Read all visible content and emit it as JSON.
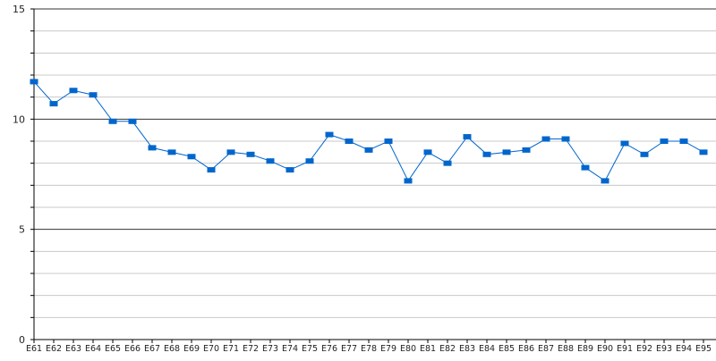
{
  "chart_data": {
    "type": "line",
    "title": "",
    "xlabel": "",
    "ylabel": "",
    "ylim": [
      0,
      15
    ],
    "y_ticks": [
      0,
      5,
      10,
      15
    ],
    "y_minor_step": 1,
    "grid": true,
    "legend": "none",
    "colors": {
      "series": "#0066cc",
      "major_grid": "#333333",
      "minor_grid": "#c8c8c8"
    },
    "categories": [
      "E61",
      "E62",
      "E63",
      "E64",
      "E65",
      "E66",
      "E67",
      "E68",
      "E69",
      "E70",
      "E71",
      "E72",
      "E73",
      "E74",
      "E75",
      "E76",
      "E77",
      "E78",
      "E79",
      "E80",
      "E81",
      "E82",
      "E83",
      "E84",
      "E85",
      "E86",
      "E87",
      "E88",
      "E89",
      "E90",
      "E91",
      "E92",
      "E93",
      "E94",
      "E95"
    ],
    "series": [
      {
        "values": [
          11.7,
          10.7,
          11.3,
          11.1,
          9.9,
          9.9,
          8.7,
          8.5,
          8.3,
          7.7,
          8.5,
          8.4,
          8.1,
          7.7,
          8.1,
          9.3,
          9.0,
          8.6,
          9.0,
          7.2,
          8.5,
          8.0,
          9.2,
          8.4,
          8.5,
          8.6,
          9.1,
          9.1,
          7.8,
          7.2,
          8.9,
          8.4,
          9.0,
          9.0,
          8.5
        ]
      }
    ]
  }
}
